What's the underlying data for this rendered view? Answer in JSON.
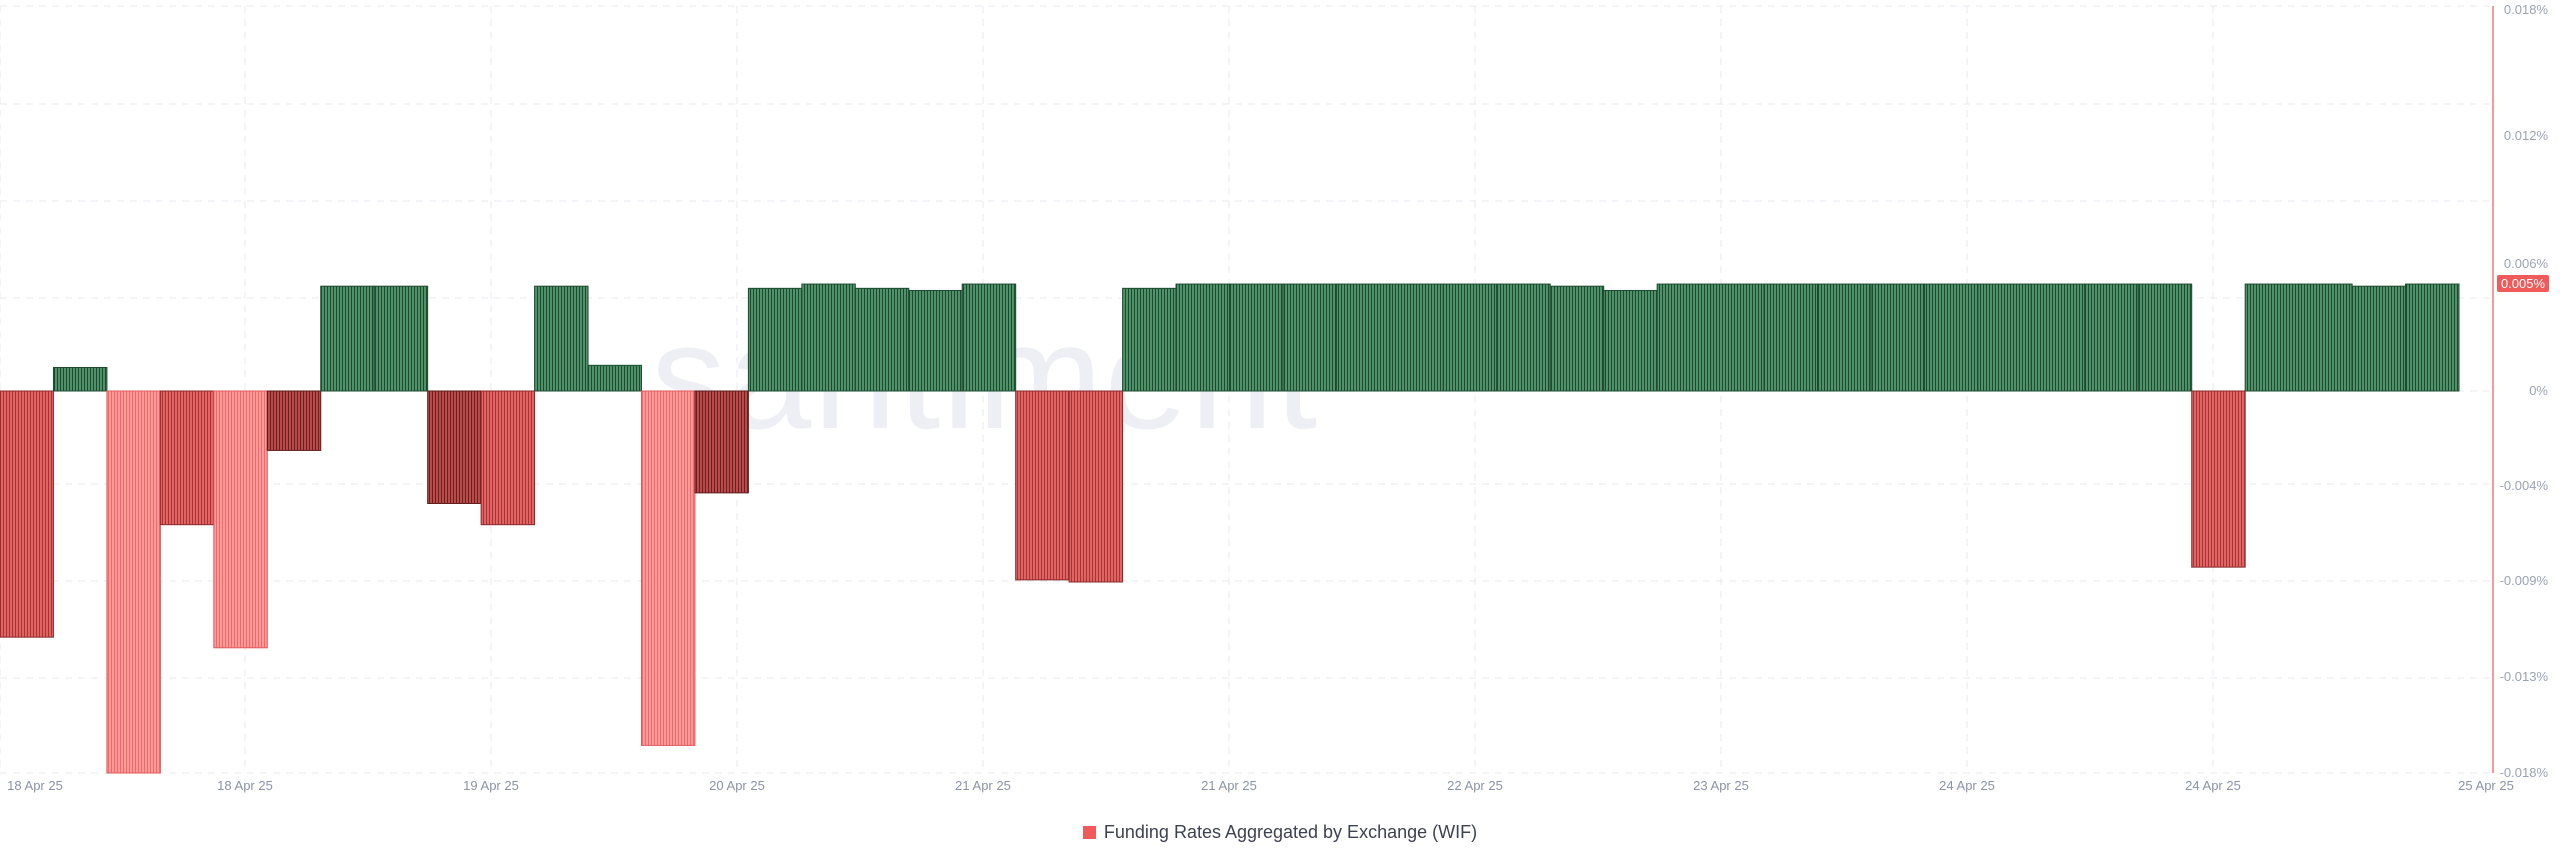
{
  "watermark": "santiment",
  "legend": {
    "label": "Funding Rates Aggregated by Exchange (WIF)",
    "color": "#f05a5a"
  },
  "colors": {
    "positive": "#3d7a55",
    "negative": "#d04a4a",
    "negative_light": "#fa8080",
    "negative_dark": "#a83a3a",
    "axis_line": "#f47a7a",
    "last_badge": "#f05a5a"
  },
  "chart_data": {
    "type": "bar",
    "y_unit": "%",
    "ylim": [
      -0.018,
      0.018
    ],
    "grid": true,
    "legend_position": "bottom-center",
    "y_ticks": [
      "0.018%",
      "0.012%",
      "0.006%",
      "0%",
      "-0.004%",
      "-0.009%",
      "-0.013%",
      "-0.018%"
    ],
    "x_ticks": [
      "18 Apr 25",
      "18 Apr 25",
      "19 Apr 25",
      "20 Apr 25",
      "21 Apr 25",
      "21 Apr 25",
      "22 Apr 25",
      "23 Apr 25",
      "24 Apr 25",
      "24 Apr 25",
      "25 Apr 25"
    ],
    "last_value_label": "0.005%",
    "series": [
      {
        "name": "Funding Rates Aggregated by Exchange (WIF)",
        "values": [
          -0.0116,
          0.0011,
          -0.018,
          -0.0063,
          -0.0121,
          -0.0028,
          0.0049,
          0.0049,
          -0.0053,
          -0.0063,
          0.0049,
          0.0012,
          -0.0167,
          -0.0048,
          0.0048,
          0.005,
          0.0048,
          0.0047,
          0.005,
          -0.0089,
          -0.009,
          0.0048,
          0.005,
          0.005,
          0.005,
          0.005,
          0.005,
          0.005,
          0.005,
          0.0049,
          0.0047,
          0.005,
          0.005,
          0.005,
          0.005,
          0.005,
          0.005,
          0.005,
          0.005,
          0.005,
          0.005,
          -0.0083,
          0.005,
          0.005,
          0.0049,
          0.005
        ]
      }
    ]
  }
}
